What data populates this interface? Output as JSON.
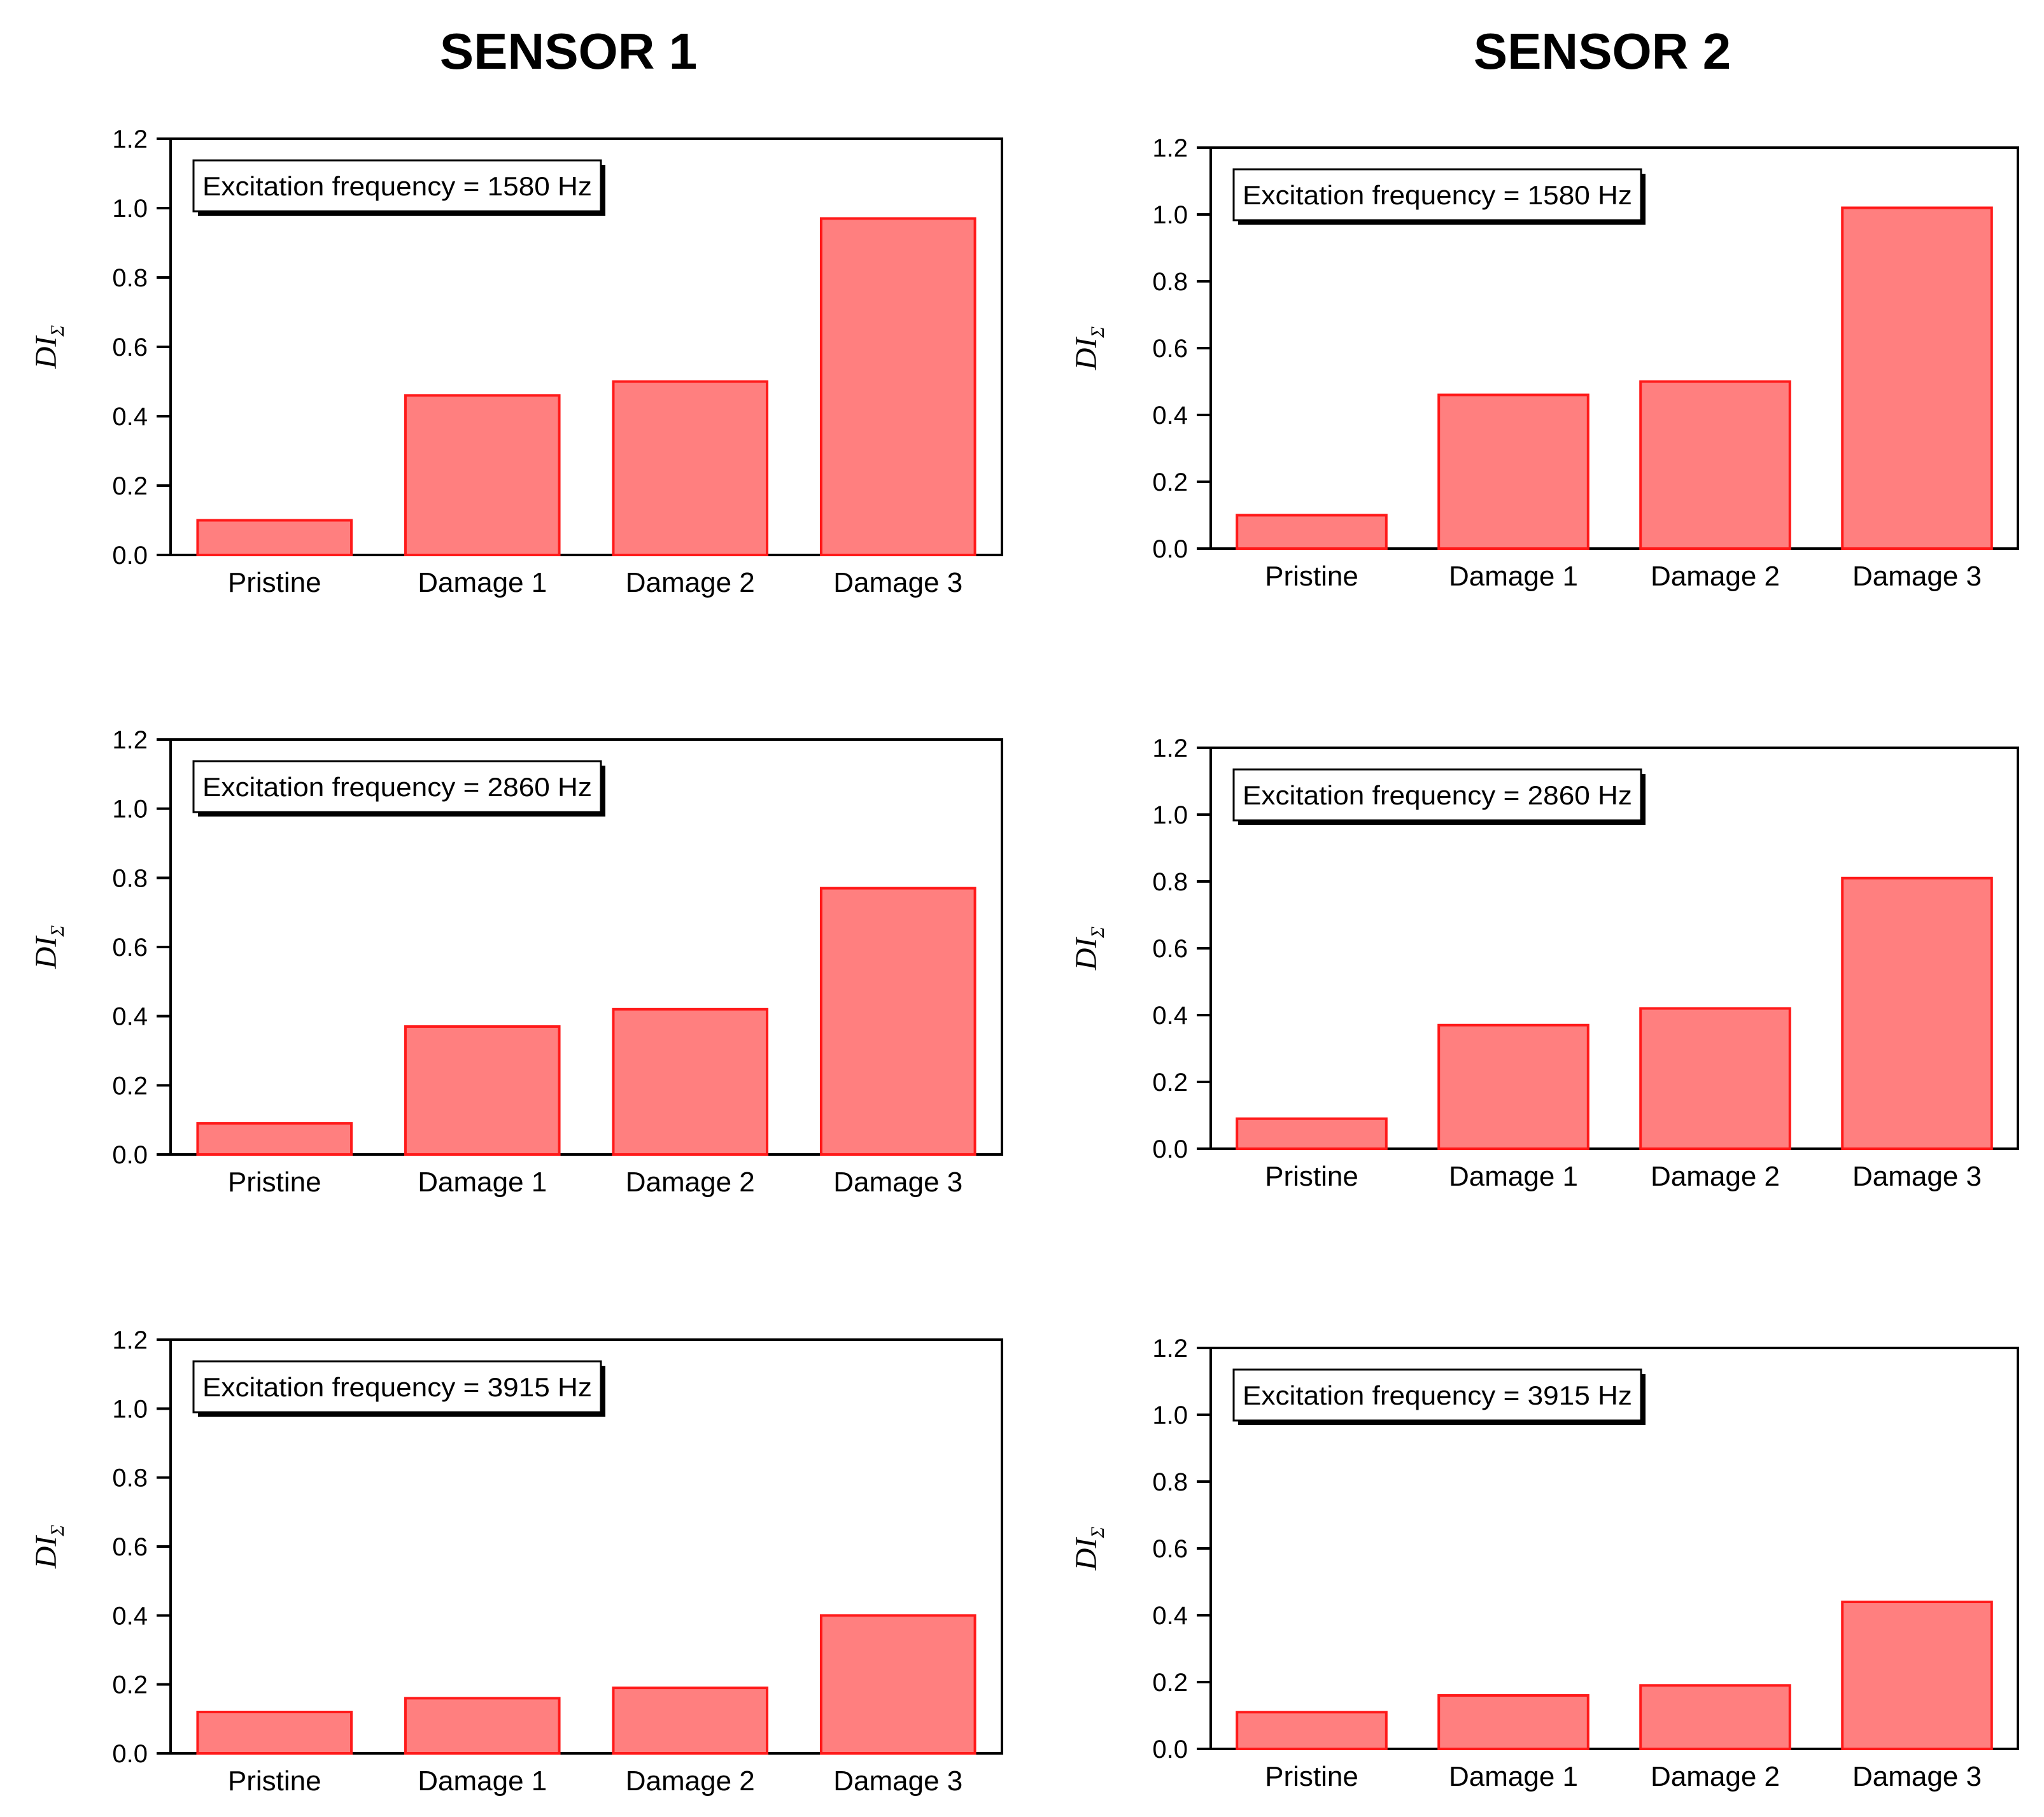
{
  "columns": [
    {
      "title": "SENSOR 1"
    },
    {
      "title": "SENSOR 2"
    }
  ],
  "colors": {
    "bar_fill": "#ff7f7f",
    "bar_stroke": "#ff1a1a",
    "axis": "#000000"
  },
  "chart_data": [
    {
      "type": "bar",
      "panel": "sensor1-1580",
      "legend": "Excitation frequency = 1580 Hz",
      "categories": [
        "Pristine",
        "Damage 1",
        "Damage 2",
        "Damage 3"
      ],
      "values": [
        0.1,
        0.46,
        0.5,
        0.97
      ],
      "ylabel": "DI",
      "ylabel_subscript": "Σ",
      "ylim": [
        0,
        1.2
      ],
      "yticks": [
        "0.0",
        "0.2",
        "0.4",
        "0.6",
        "0.8",
        "1.0",
        "1.2"
      ],
      "grid": false,
      "legend_position": "top-left"
    },
    {
      "type": "bar",
      "panel": "sensor2-1580",
      "legend": "Excitation frequency = 1580 Hz",
      "categories": [
        "Pristine",
        "Damage 1",
        "Damage 2",
        "Damage 3"
      ],
      "values": [
        0.1,
        0.46,
        0.5,
        1.02
      ],
      "ylabel": "DI",
      "ylabel_subscript": "Σ",
      "ylim": [
        0,
        1.2
      ],
      "yticks": [
        "0.0",
        "0.2",
        "0.4",
        "0.6",
        "0.8",
        "1.0",
        "1.2"
      ],
      "grid": false,
      "legend_position": "top-left"
    },
    {
      "type": "bar",
      "panel": "sensor1-2860",
      "legend": "Excitation frequency = 2860 Hz",
      "categories": [
        "Pristine",
        "Damage 1",
        "Damage 2",
        "Damage 3"
      ],
      "values": [
        0.09,
        0.37,
        0.42,
        0.77
      ],
      "ylabel": "DI",
      "ylabel_subscript": "Σ",
      "ylim": [
        0,
        1.2
      ],
      "yticks": [
        "0.0",
        "0.2",
        "0.4",
        "0.6",
        "0.8",
        "1.0",
        "1.2"
      ],
      "grid": false,
      "legend_position": "top-left"
    },
    {
      "type": "bar",
      "panel": "sensor2-2860",
      "legend": "Excitation frequency = 2860 Hz",
      "categories": [
        "Pristine",
        "Damage 1",
        "Damage 2",
        "Damage 3"
      ],
      "values": [
        0.09,
        0.37,
        0.42,
        0.81
      ],
      "ylabel": "DI",
      "ylabel_subscript": "Σ",
      "ylim": [
        0,
        1.2
      ],
      "yticks": [
        "0.0",
        "0.2",
        "0.4",
        "0.6",
        "0.8",
        "1.0",
        "1.2"
      ],
      "grid": false,
      "legend_position": "top-left"
    },
    {
      "type": "bar",
      "panel": "sensor1-3915",
      "legend": "Excitation frequency = 3915 Hz",
      "categories": [
        "Pristine",
        "Damage 1",
        "Damage 2",
        "Damage 3"
      ],
      "values": [
        0.12,
        0.16,
        0.19,
        0.4
      ],
      "ylabel": "DI",
      "ylabel_subscript": "Σ",
      "ylim": [
        0,
        1.2
      ],
      "yticks": [
        "0.0",
        "0.2",
        "0.4",
        "0.6",
        "0.8",
        "1.0",
        "1.2"
      ],
      "grid": false,
      "legend_position": "top-left"
    },
    {
      "type": "bar",
      "panel": "sensor2-3915",
      "legend": "Excitation frequency = 3915 Hz",
      "categories": [
        "Pristine",
        "Damage 1",
        "Damage 2",
        "Damage 3"
      ],
      "values": [
        0.11,
        0.16,
        0.19,
        0.44
      ],
      "ylabel": "DI",
      "ylabel_subscript": "Σ",
      "ylim": [
        0,
        1.2
      ],
      "yticks": [
        "0.0",
        "0.2",
        "0.4",
        "0.6",
        "0.8",
        "1.0",
        "1.2"
      ],
      "grid": false,
      "legend_position": "top-left"
    }
  ]
}
